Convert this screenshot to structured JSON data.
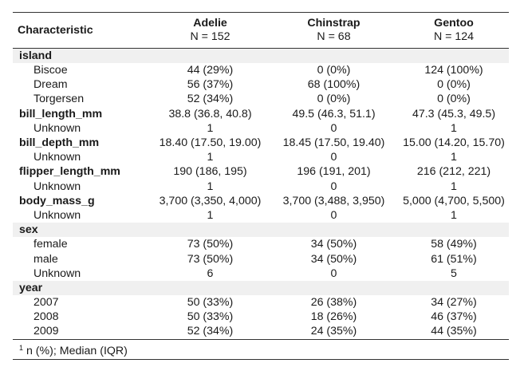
{
  "header": {
    "characteristic": "Characteristic",
    "groups": [
      {
        "name": "Adelie",
        "n": "N = 152"
      },
      {
        "name": "Chinstrap",
        "n": "N = 68"
      },
      {
        "name": "Gentoo",
        "n": "N = 124"
      }
    ]
  },
  "rows": [
    {
      "label": "island",
      "kind": "group",
      "values": [
        "",
        "",
        ""
      ]
    },
    {
      "label": "Biscoe",
      "kind": "sub",
      "values": [
        "44 (29%)",
        "0 (0%)",
        "124 (100%)"
      ]
    },
    {
      "label": "Dream",
      "kind": "sub",
      "values": [
        "56 (37%)",
        "68 (100%)",
        "0 (0%)"
      ]
    },
    {
      "label": "Torgersen",
      "kind": "sub",
      "values": [
        "52 (34%)",
        "0 (0%)",
        "0 (0%)"
      ]
    },
    {
      "label": "bill_length_mm",
      "kind": "var",
      "values": [
        "38.8 (36.8, 40.8)",
        "49.5 (46.3, 51.1)",
        "47.3 (45.3, 49.5)"
      ]
    },
    {
      "label": "Unknown",
      "kind": "sub",
      "values": [
        "1",
        "0",
        "1"
      ]
    },
    {
      "label": "bill_depth_mm",
      "kind": "var",
      "values": [
        "18.40 (17.50, 19.00)",
        "18.45 (17.50, 19.40)",
        "15.00 (14.20, 15.70)"
      ]
    },
    {
      "label": "Unknown",
      "kind": "sub",
      "values": [
        "1",
        "0",
        "1"
      ]
    },
    {
      "label": "flipper_length_mm",
      "kind": "var",
      "values": [
        "190 (186, 195)",
        "196 (191, 201)",
        "216 (212, 221)"
      ]
    },
    {
      "label": "Unknown",
      "kind": "sub",
      "values": [
        "1",
        "0",
        "1"
      ]
    },
    {
      "label": "body_mass_g",
      "kind": "var",
      "values": [
        "3,700 (3,350, 4,000)",
        "3,700 (3,488, 3,950)",
        "5,000 (4,700, 5,500)"
      ]
    },
    {
      "label": "Unknown",
      "kind": "sub",
      "values": [
        "1",
        "0",
        "1"
      ]
    },
    {
      "label": "sex",
      "kind": "group",
      "values": [
        "",
        "",
        ""
      ]
    },
    {
      "label": "female",
      "kind": "sub",
      "values": [
        "73 (50%)",
        "34 (50%)",
        "58 (49%)"
      ]
    },
    {
      "label": "male",
      "kind": "sub",
      "values": [
        "73 (50%)",
        "34 (50%)",
        "61 (51%)"
      ]
    },
    {
      "label": "Unknown",
      "kind": "sub",
      "values": [
        "6",
        "0",
        "5"
      ]
    },
    {
      "label": "year",
      "kind": "group",
      "values": [
        "",
        "",
        ""
      ]
    },
    {
      "label": "2007",
      "kind": "sub",
      "values": [
        "50 (33%)",
        "26 (38%)",
        "34 (27%)"
      ]
    },
    {
      "label": "2008",
      "kind": "sub",
      "values": [
        "50 (33%)",
        "18 (26%)",
        "46 (37%)"
      ]
    },
    {
      "label": "2009",
      "kind": "sub",
      "values": [
        "52 (34%)",
        "24 (35%)",
        "44 (35%)"
      ]
    }
  ],
  "footnote": {
    "marker": "1",
    "text": "n (%); Median (IQR)"
  }
}
